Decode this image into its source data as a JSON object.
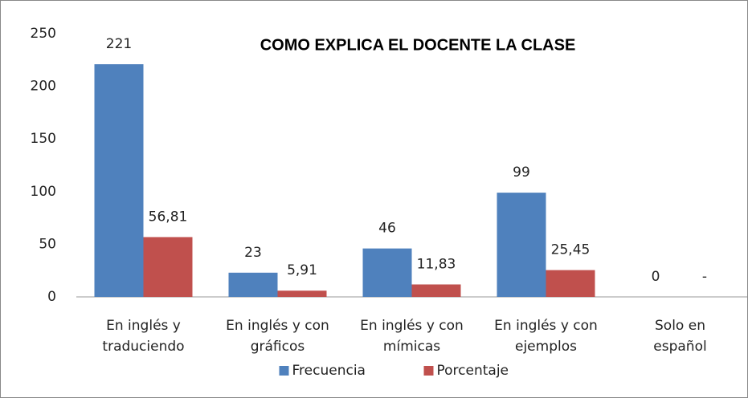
{
  "chart_data": {
    "type": "bar",
    "title": "COMO EXPLICA EL DOCENTE LA CLASE",
    "categories": [
      "En inglés y\ntraduciendo",
      "En inglés y con\ngráficos",
      "En inglés y con\nmímicas",
      "En inglés y con\nejemplos",
      "Solo en\nespañol"
    ],
    "series": [
      {
        "name": "Frecuencia",
        "color": "#4f81bd",
        "values": [
          221,
          23,
          46,
          99,
          0
        ]
      },
      {
        "name": "Porcentaje",
        "color": "#c0504d",
        "values": [
          56.81,
          5.91,
          11.83,
          25.45,
          null
        ],
        "value_labels": [
          "56,81",
          "5,91",
          "11,83",
          "25,45",
          "-"
        ]
      }
    ],
    "ylim": [
      0,
      250
    ],
    "yticks": [
      0,
      50,
      100,
      150,
      200,
      250
    ],
    "legend": "bottom"
  }
}
